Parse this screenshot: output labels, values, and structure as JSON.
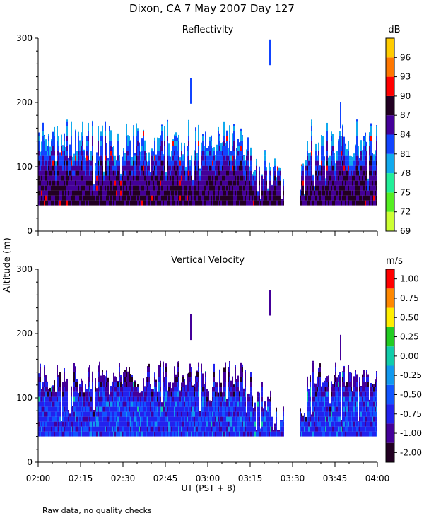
{
  "figure": {
    "title": "Dixon, CA  7 May 2007  Day 127",
    "ylabel": "Altitude (m)",
    "xlabel": "UT  (PST + 8)",
    "footnote": "Raw data, no quality checks"
  },
  "chart_data": [
    {
      "type": "heatmap",
      "title": "Reflectivity",
      "ylim": [
        0,
        300
      ],
      "yticks": [
        0,
        100,
        200,
        300
      ],
      "xlim": [
        120,
        240
      ],
      "xtick_minutes": [
        120,
        135,
        150,
        165,
        180,
        195,
        210,
        225,
        240
      ],
      "xtick_labels": [
        "02:00",
        "02:15",
        "02:30",
        "02:45",
        "03:00",
        "03:15",
        "03:30",
        "03:45",
        "04:00"
      ],
      "colorbar": {
        "unit": "dB",
        "labels": [
          "69",
          "72",
          "75",
          "78",
          "81",
          "84",
          "87",
          "90",
          "93",
          "96"
        ],
        "colors": [
          "#ccff33",
          "#55ee22",
          "#22ee99",
          "#11aaee",
          "#1144ff",
          "#440099",
          "#220022",
          "#ff0000",
          "#ff7700",
          "#ffcc00"
        ]
      },
      "features": {
        "echo_base_m": 40,
        "gap_minutes": [
          207,
          212
        ],
        "spikes": [
          {
            "time_min": 174,
            "top_m": 238
          },
          {
            "time_min": 202,
            "top_m": 298
          },
          {
            "time_min": 227,
            "top_m": 200
          }
        ]
      }
    },
    {
      "type": "heatmap",
      "title": "Vertical Velocity",
      "ylim": [
        0,
        300
      ],
      "yticks": [
        0,
        100,
        200,
        300
      ],
      "xlim": [
        120,
        240
      ],
      "xtick_minutes": [
        120,
        135,
        150,
        165,
        180,
        195,
        210,
        225,
        240
      ],
      "xtick_labels": [
        "02:00",
        "02:15",
        "02:30",
        "02:45",
        "03:00",
        "03:15",
        "03:30",
        "03:45",
        "04:00"
      ],
      "colorbar": {
        "unit": "m/s",
        "labels": [
          "-2.00",
          "-1.00",
          "-0.75",
          "-0.50",
          "-0.25",
          "0.00",
          "0.25",
          "0.50",
          "0.75",
          "1.00"
        ],
        "colors": [
          "#220022",
          "#440099",
          "#2222ee",
          "#1155ff",
          "#1199ee",
          "#11ccaa",
          "#22cc22",
          "#ffee00",
          "#ff8800",
          "#ff0000"
        ]
      },
      "features": {
        "echo_base_m": 40,
        "gap_minutes": [
          207,
          212
        ],
        "spikes": [
          {
            "time_min": 174,
            "top_m": 230
          },
          {
            "time_min": 202,
            "top_m": 268
          },
          {
            "time_min": 227,
            "top_m": 198
          }
        ]
      }
    }
  ]
}
